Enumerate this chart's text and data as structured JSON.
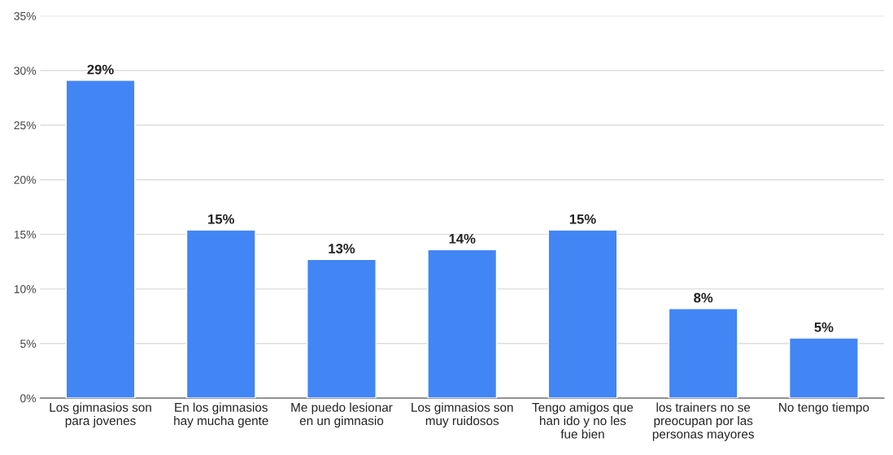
{
  "chart_data": {
    "type": "bar",
    "categories": [
      "Los gimnasios son para jovenes",
      "En los gimnasios hay mucha gente",
      "Me puedo lesionar en un gimnasio",
      "Los gimnasios son muy ruidosos",
      "Tengo amigos que han ido y no les fue bien",
      "los trainers no se preocupan por las personas mayores",
      "No tengo tiempo"
    ],
    "values": [
      29.1,
      15.4,
      12.7,
      13.6,
      15.4,
      8.2,
      5.5
    ],
    "value_labels": [
      "29%",
      "15%",
      "13%",
      "14%",
      "15%",
      "8%",
      "5%"
    ],
    "color": "#4285f4",
    "ylim": [
      0,
      35
    ],
    "yticks": [
      {
        "value": 0,
        "label": "0%"
      },
      {
        "value": 5,
        "label": "5%"
      },
      {
        "value": 10,
        "label": "10%"
      },
      {
        "value": 15,
        "label": "15%"
      },
      {
        "value": 20,
        "label": "20%"
      },
      {
        "value": 25,
        "label": "25%"
      },
      {
        "value": 30,
        "label": "30%"
      },
      {
        "value": 35,
        "label": "35%"
      }
    ],
    "grid": "y"
  }
}
